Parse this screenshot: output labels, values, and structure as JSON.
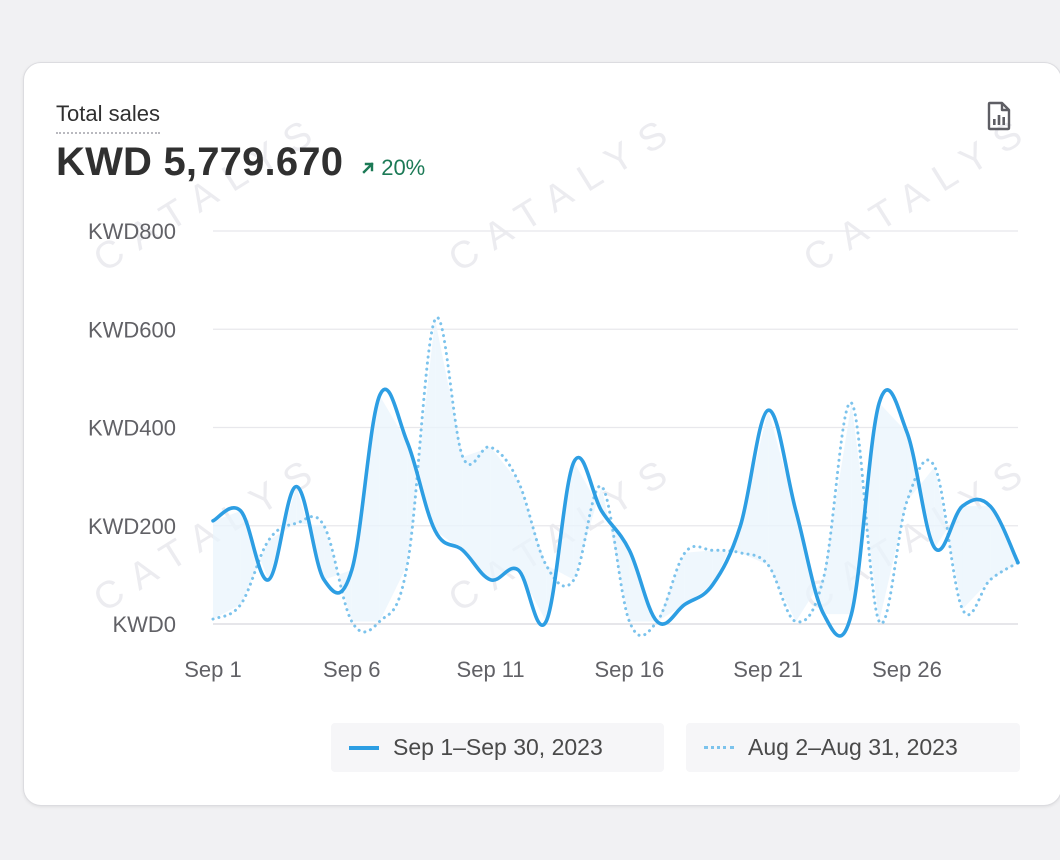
{
  "card": {
    "title": "Total sales",
    "value": "KWD 5,779.670",
    "delta": "20%",
    "report_icon": "report-chart-icon"
  },
  "watermark": "CATALYS",
  "colors": {
    "primary": "#2d9ee3",
    "comparison": "#7cc3ec",
    "positive": "#1c7a56"
  },
  "chart_data": {
    "type": "line",
    "ylim": [
      0,
      800
    ],
    "yticks": [
      "KWD800",
      "KWD600",
      "KWD400",
      "KWD200",
      "KWD0"
    ],
    "ytick_values": [
      800,
      600,
      400,
      200,
      0
    ],
    "xticks": [
      "Sep 1",
      "Sep 6",
      "Sep 11",
      "Sep 16",
      "Sep 21",
      "Sep 26"
    ],
    "xtick_index": [
      0,
      5,
      10,
      15,
      20,
      25
    ],
    "series": [
      {
        "name": "Sep 1–Sep 30, 2023",
        "style": "solid",
        "values": [
          210,
          230,
          90,
          280,
          90,
          110,
          465,
          370,
          190,
          150,
          90,
          110,
          5,
          330,
          230,
          150,
          5,
          40,
          80,
          200,
          435,
          230,
          20,
          20,
          450,
          390,
          155,
          240,
          240,
          125
        ]
      },
      {
        "name": "Aug 2–Aug 31, 2023",
        "style": "dotted",
        "values": [
          10,
          40,
          170,
          205,
          200,
          5,
          5,
          120,
          620,
          340,
          360,
          290,
          120,
          90,
          280,
          5,
          5,
          145,
          150,
          145,
          120,
          5,
          95,
          450,
          5,
          250,
          320,
          30,
          90,
          125
        ]
      }
    ]
  }
}
